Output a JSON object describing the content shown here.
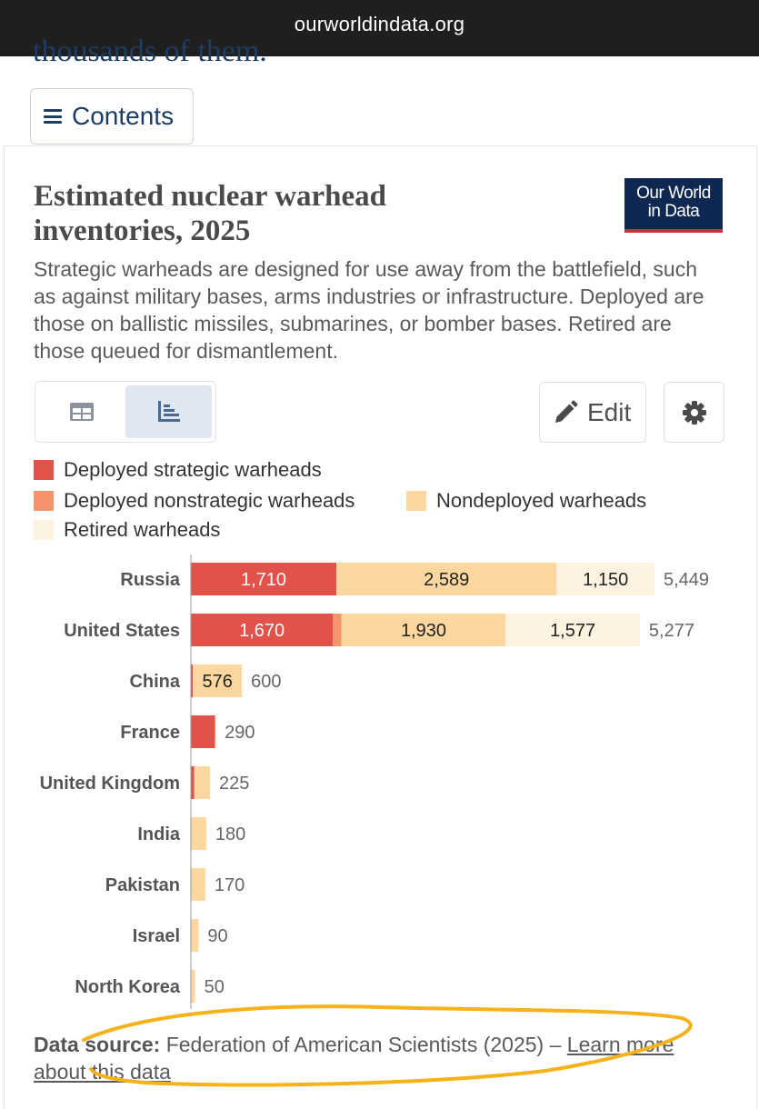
{
  "browser": {
    "url": "ourworldindata.org"
  },
  "article": {
    "prev_text": "thousands of them."
  },
  "nav": {
    "contents_label": "Contents"
  },
  "chart_card": {
    "title": "Estimated nuclear warhead inventories, 2025",
    "subtitle": "Strategic warheads are designed for use away from the battlefield, such as against military bases, arms industries or infrastructure. Deployed are those on ballistic missiles, submarines, or bomber bases. Retired are those queued for dismantlement.",
    "logo_line1": "Our World",
    "logo_line2": "in Data",
    "edit_label": "Edit",
    "source_label": "Data source:",
    "source_text": "Federation of American Scientists (2025) –",
    "learn_more": "Learn more about this data"
  },
  "colors": {
    "deployed_strategic": "#e0524a",
    "deployed_nonstrategic": "#f7936a",
    "nondeployed": "#fdd79f",
    "retired": "#fef3e0",
    "highlight_scribble": "#f6b21a"
  },
  "icons": {
    "table": "table-icon",
    "chart": "bar-chart-icon",
    "edit": "pencil-icon",
    "settings": "gear-icon",
    "menu": "hamburger-icon"
  },
  "chart_data": {
    "type": "bar",
    "orientation": "horizontal",
    "stacked": true,
    "categories": [
      "Russia",
      "United States",
      "China",
      "France",
      "United Kingdom",
      "India",
      "Pakistan",
      "Israel",
      "North Korea"
    ],
    "series": [
      {
        "name": "Deployed strategic warheads",
        "values": [
          1710,
          1670,
          24,
          280,
          40,
          0,
          0,
          0,
          0
        ]
      },
      {
        "name": "Deployed nonstrategic warheads",
        "values": [
          0,
          100,
          0,
          10,
          0,
          0,
          0,
          0,
          0
        ]
      },
      {
        "name": "Nondeployed warheads",
        "values": [
          2589,
          1930,
          576,
          0,
          185,
          180,
          170,
          90,
          50
        ]
      },
      {
        "name": "Retired warheads",
        "values": [
          1150,
          1577,
          0,
          0,
          0,
          0,
          0,
          0,
          0
        ]
      }
    ],
    "segment_labels": [
      [
        "1,710",
        "",
        "2,589",
        "1,150"
      ],
      [
        "1,670",
        "",
        "1,930",
        "1,577"
      ],
      [
        "",
        "",
        "576",
        ""
      ],
      [
        "",
        "",
        "",
        ""
      ],
      [
        "",
        "",
        "",
        ""
      ],
      [
        "",
        "",
        "",
        ""
      ],
      [
        "",
        "",
        "",
        ""
      ],
      [
        "",
        "",
        "",
        ""
      ],
      [
        "",
        "",
        "",
        ""
      ]
    ],
    "totals": [
      "5,449",
      "5,277",
      "600",
      "290",
      "225",
      "180",
      "170",
      "90",
      "50"
    ],
    "legend_position": "top",
    "xlim": [
      0,
      5449
    ]
  }
}
